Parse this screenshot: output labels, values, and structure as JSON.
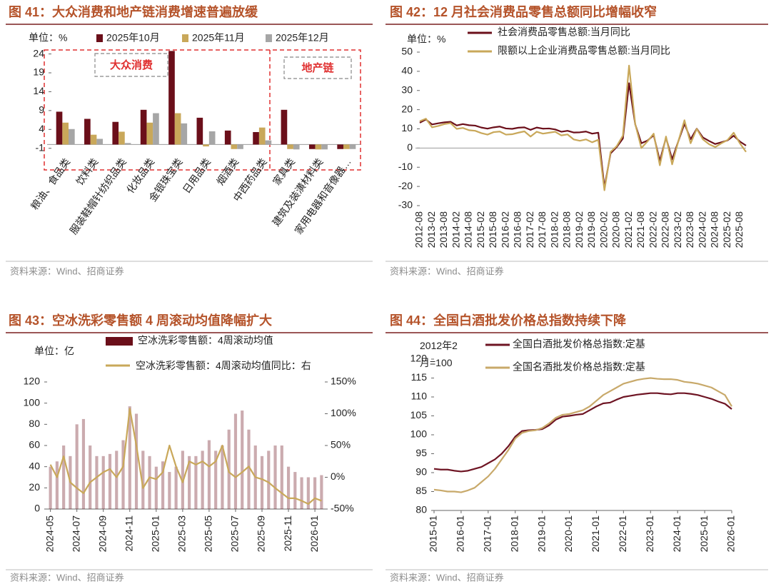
{
  "chart_data": [
    {
      "type": "bar",
      "title": "图 41：大众消费和地产链消费增速普遍放缓",
      "unit": "单位：%",
      "categories": [
        "粮油、食品类",
        "饮料类",
        "服装鞋帽针纺织品类",
        "化妆品类",
        "金银珠宝类",
        "日用品类",
        "烟酒类",
        "中西药品类",
        "家具类",
        "建筑及装潢材料类",
        "家用电器和音像器…"
      ],
      "series": [
        {
          "name": "2025年10月",
          "color": "#6b0f1a",
          "values": [
            8.7,
            6.8,
            6.0,
            9.2,
            24.8,
            7.1,
            3.7,
            3.3,
            9.2,
            -1.2,
            -1.2
          ]
        },
        {
          "name": "2025年11月",
          "color": "#c9a85a",
          "values": [
            5.8,
            2.6,
            3.4,
            5.8,
            8.3,
            -0.5,
            -1.2,
            4.5,
            -1.2,
            -1.3,
            -1.2
          ]
        },
        {
          "name": "2025年12月",
          "color": "#a6a6a6",
          "values": [
            4.1,
            1.5,
            0.4,
            8.3,
            5.6,
            3.5,
            -1.2,
            1.1,
            -1.3,
            -1.3,
            -1.2
          ]
        }
      ],
      "ylim": [
        -2,
        26
      ],
      "yticks": [
        -1,
        4,
        9,
        14,
        19,
        24
      ],
      "annotations": [
        "大众消费",
        "地产链"
      ],
      "source": "资料来源：Wind、招商证券"
    },
    {
      "type": "line",
      "title": "图 42：12 月社会消费品零售总额同比增幅收窄",
      "unit": "单位：%",
      "categories": [
        "2012-08",
        null,
        "2013-02",
        null,
        "2013-08",
        null,
        "2014-02",
        null,
        "2014-08",
        null,
        "2015-02",
        null,
        "2015-08",
        null,
        "2016-02",
        null,
        "2016-08",
        null,
        "2017-02",
        null,
        "2017-08",
        null,
        "2018-02",
        null,
        "2018-08",
        null,
        "2019-02",
        null,
        "2019-08",
        null,
        "2020-02",
        null,
        "2020-08",
        null,
        "2021-02",
        null,
        "2021-08",
        null,
        "2022-02",
        null,
        "2022-08",
        null,
        "2023-02",
        null,
        "2023-08",
        null,
        "2024-02",
        null,
        "2024-08",
        null,
        "2025-02",
        null,
        "2025-08",
        null
      ],
      "series": [
        {
          "name": "社会消费品零售总额:当月同比",
          "color": "#6b0f1a",
          "values": [
            13.2,
            14.9,
            12.3,
            12.9,
            13.4,
            13.7,
            11.8,
            12.5,
            11.9,
            11.7,
            10.7,
            10.1,
            10.8,
            11.2,
            10.2,
            10.0,
            10.6,
            10.8,
            9.5,
            10.7,
            10.1,
            10.2,
            9.7,
            8.5,
            9.0,
            8.1,
            8.2,
            8.6,
            7.5,
            8.0,
            -20.5,
            -2.8,
            0.5,
            5.0,
            33.8,
            12.4,
            2.5,
            3.9,
            6.7,
            -6.7,
            5.4,
            -5.9,
            3.5,
            12.7,
            4.6,
            10.1,
            5.5,
            3.7,
            2.1,
            3.0,
            4.0,
            6.4,
            3.4,
            1.3
          ]
        },
        {
          "name": "限额以上企业消费品零售总额:当月同比",
          "color": "#c9a85a",
          "values": [
            14.0,
            15.3,
            10.8,
            11.5,
            12.5,
            13.0,
            10.0,
            10.5,
            9.3,
            9.0,
            7.8,
            7.0,
            8.3,
            8.6,
            7.0,
            7.2,
            8.0,
            8.7,
            6.0,
            8.5,
            7.5,
            8.0,
            8.5,
            6.6,
            7.1,
            4.5,
            3.8,
            4.5,
            3.0,
            4.3,
            -22.0,
            -2.0,
            1.0,
            6.5,
            43.0,
            12.5,
            0.0,
            3.5,
            7.5,
            -9.0,
            6.0,
            -8.5,
            3.5,
            14.5,
            2.5,
            10.0,
            4.5,
            2.0,
            0.5,
            2.5,
            4.2,
            8.0,
            2.5,
            -2.0
          ]
        }
      ],
      "ylim": [
        -30,
        50
      ],
      "yticks": [
        -30,
        -20,
        -10,
        0,
        10,
        20,
        30,
        40,
        50
      ],
      "source": "资料来源：Wind、招商证券"
    },
    {
      "type": "combo",
      "title": "图 43：空冰洗彩零售额 4 周滚动均值降幅扩大",
      "unit": "单位：亿",
      "categories": [
        "2024-05",
        null,
        null,
        null,
        "2024-07",
        null,
        null,
        null,
        "2024-09",
        null,
        null,
        null,
        "2024-11",
        null,
        null,
        null,
        "2025-01",
        null,
        null,
        null,
        "2025-03",
        null,
        null,
        null,
        "2025-05",
        null,
        null,
        null,
        "2025-07",
        null,
        null,
        null,
        "2025-09",
        null,
        null,
        null,
        "2025-11",
        null,
        null,
        null,
        "2026-01",
        null
      ],
      "series": [
        {
          "name": "空冰洗彩零售额：4周滚动均值",
          "type": "bar",
          "color": "#6b0f1a",
          "values": [
            40,
            45,
            60,
            50,
            80,
            85,
            60,
            50,
            50,
            52,
            55,
            65,
            97,
            90,
            55,
            50,
            40,
            45,
            35,
            40,
            55,
            50,
            50,
            55,
            65,
            55,
            60,
            75,
            90,
            93,
            75,
            60,
            50,
            55,
            60,
            60,
            40,
            35,
            30,
            30,
            30,
            32
          ]
        },
        {
          "name": "空冰洗彩零售额：4周滚动均值同比：右",
          "type": "line",
          "axis": "y2",
          "color": "#c9a85a",
          "values": [
            20,
            0,
            33,
            -8,
            -17,
            -25,
            -8,
            0,
            8,
            13,
            0,
            17,
            108,
            50,
            -17,
            0,
            -3,
            8,
            50,
            17,
            -8,
            25,
            20,
            25,
            17,
            25,
            50,
            8,
            0,
            8,
            17,
            0,
            -3,
            -8,
            -17,
            -25,
            -33,
            -33,
            -37,
            -42,
            -33,
            -37
          ]
        }
      ],
      "ylim": [
        0,
        120
      ],
      "yticks": [
        0,
        20,
        40,
        60,
        80,
        100,
        120
      ],
      "y2lim": [
        -50,
        150
      ],
      "y2ticks": [
        {
          "value": -50,
          "label": "-50%"
        },
        {
          "value": 0,
          "label": "0%"
        },
        {
          "value": 50,
          "label": "50%"
        },
        {
          "value": 100,
          "label": "100%"
        },
        {
          "value": 150,
          "label": "150%"
        }
      ],
      "source": "资料来源：Wind、招商证券"
    },
    {
      "type": "line",
      "title": "图 44：全国白酒批发价格总指数持续下降",
      "unit": "2012年2月=100",
      "categories": [
        "2015-01",
        null,
        null,
        null,
        "2016-01",
        null,
        null,
        null,
        "2017-01",
        null,
        null,
        null,
        "2018-01",
        null,
        null,
        null,
        "2019-01",
        null,
        null,
        null,
        "2020-01",
        null,
        null,
        null,
        "2021-01",
        null,
        null,
        null,
        "2022-01",
        null,
        null,
        null,
        "2023-01",
        null,
        null,
        null,
        "2024-01",
        null,
        null,
        null,
        "2025-01",
        null,
        null,
        null,
        "2026-01"
      ],
      "series": [
        {
          "name": "全国白酒批发价格总指数:定基",
          "color": "#6e1423",
          "values": [
            91,
            90.8,
            90.8,
            90.5,
            90.3,
            90.5,
            91,
            91.5,
            92.5,
            93.5,
            95,
            97,
            99.5,
            101,
            101.2,
            101.3,
            101.5,
            102.5,
            104,
            104.8,
            105,
            105.3,
            105.5,
            106.5,
            107.5,
            108.3,
            108.5,
            109.3,
            110,
            110.3,
            110.6,
            110.8,
            111,
            111,
            110.8,
            110.7,
            111,
            111,
            110.8,
            110.5,
            110,
            109.5,
            108.8,
            108.2,
            106.8
          ]
        },
        {
          "name": "全国名酒批发价格总指数:定基",
          "color": "#c8a96a",
          "values": [
            85.5,
            85.3,
            85,
            85,
            84.8,
            85.3,
            86,
            87.5,
            89,
            91,
            93.5,
            96,
            99,
            100.5,
            101,
            101.2,
            101.8,
            103,
            104.5,
            105.3,
            105.5,
            106,
            106.5,
            107.5,
            109,
            110.5,
            111.5,
            112.5,
            113.5,
            114,
            114.5,
            114.8,
            115,
            114.8,
            114.7,
            114.7,
            114.5,
            114,
            113.8,
            113.5,
            113,
            112.5,
            111.5,
            110.5,
            107.5
          ]
        }
      ],
      "ylim": [
        80,
        120
      ],
      "yticks": [
        80,
        85,
        90,
        95,
        100,
        105,
        110,
        115,
        120
      ],
      "source": "资料来源：Wind、招商证券"
    }
  ]
}
